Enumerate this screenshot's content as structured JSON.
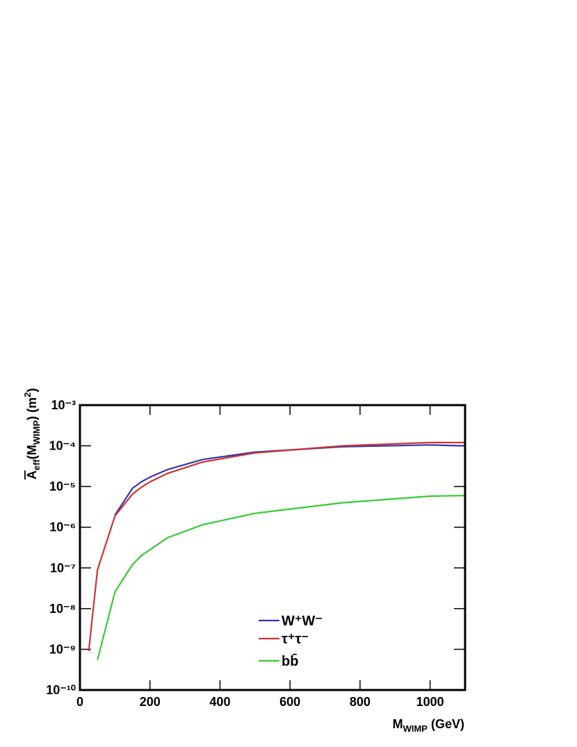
{
  "chart_data": {
    "type": "line",
    "xlabel_parts": [
      "M",
      "WIMP",
      " (GeV)"
    ],
    "ylabel_parts": [
      "A",
      "eff",
      "(M",
      "WIMP",
      ") (m",
      "2",
      ")"
    ],
    "xlim": [
      0,
      1100
    ],
    "xticks": [
      0,
      200,
      400,
      600,
      800,
      1000
    ],
    "ylim": [
      1e-10,
      0.001
    ],
    "log_y": true,
    "yticks": [
      {
        "value": 1e-10,
        "label": "10⁻¹⁰"
      },
      {
        "value": 1e-09,
        "label": "10⁻⁹"
      },
      {
        "value": 1e-08,
        "label": "10⁻⁸"
      },
      {
        "value": 1e-07,
        "label": "10⁻⁷"
      },
      {
        "value": 1e-06,
        "label": "10⁻⁶"
      },
      {
        "value": 1e-05,
        "label": "10⁻⁵"
      },
      {
        "value": 0.0001,
        "label": "10⁻⁴"
      },
      {
        "value": 0.001,
        "label": "10⁻³"
      }
    ],
    "series": [
      {
        "name": "W⁺W⁻",
        "color": "#3333aa",
        "x": [
          100,
          150,
          175,
          200,
          250,
          350,
          500,
          750,
          1000,
          1100
        ],
        "values": [
          2e-06,
          9e-06,
          1.3e-05,
          1.7e-05,
          2.6e-05,
          4.6e-05,
          7e-05,
          9.5e-05,
          0.000105,
          0.0001
        ]
      },
      {
        "name": "τ⁺τ⁻",
        "color": "#cc3333",
        "x": [
          25,
          50,
          100,
          150,
          175,
          200,
          250,
          350,
          500,
          750,
          1000,
          1100
        ],
        "values": [
          9e-10,
          9e-08,
          1.9e-06,
          6.5e-06,
          9.5e-06,
          1.3e-05,
          2.1e-05,
          4e-05,
          6.7e-05,
          0.0001,
          0.00012,
          0.00012
        ]
      },
      {
        "name": "bb̄",
        "color": "#33cc33",
        "x": [
          50,
          100,
          150,
          175,
          200,
          250,
          350,
          500,
          750,
          1000,
          1100
        ],
        "values": [
          5.5e-10,
          2.6e-08,
          1.2e-07,
          2e-07,
          2.8e-07,
          5.5e-07,
          1.15e-06,
          2.2e-06,
          4e-06,
          5.8e-06,
          6e-06
        ]
      }
    ]
  }
}
